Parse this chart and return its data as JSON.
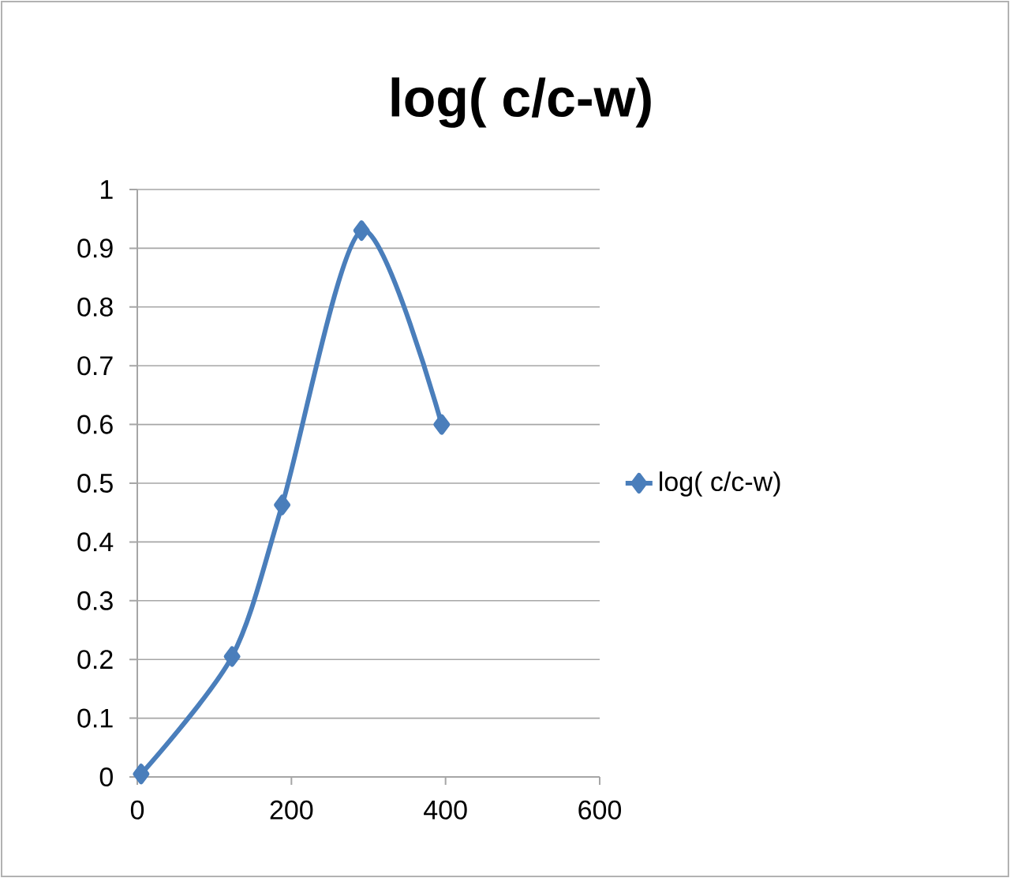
{
  "chart_data": {
    "type": "line",
    "title": "log( c/c-w)",
    "series": [
      {
        "name": "log( c/c-w)",
        "color": "#4a7ebb",
        "x": [
          5,
          123,
          188,
          291,
          395
        ],
        "values": [
          0.005,
          0.205,
          0.463,
          0.93,
          0.6
        ]
      }
    ],
    "xlim": [
      0,
      600
    ],
    "xticks": [
      0,
      200,
      400,
      600
    ],
    "ylim": [
      0,
      1
    ],
    "yticks": [
      0,
      0.1,
      0.2,
      0.3,
      0.4,
      0.5,
      0.6,
      0.7,
      0.8,
      0.9,
      1
    ],
    "grid": "y",
    "legend": "right",
    "marker": "diamond"
  }
}
